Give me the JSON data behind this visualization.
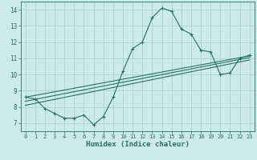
{
  "xlabel": "Humidex (Indice chaleur)",
  "bg_color": "#cceae8",
  "line_color": "#2a6e68",
  "grid_color": "#aad4d0",
  "main_x": [
    0,
    1,
    2,
    3,
    4,
    5,
    6,
    7,
    8,
    9,
    10,
    11,
    12,
    13,
    14,
    15,
    16,
    17,
    18,
    19,
    20,
    21,
    22,
    23
  ],
  "main_y": [
    8.6,
    8.5,
    7.9,
    7.6,
    7.3,
    7.3,
    7.5,
    6.9,
    7.4,
    8.6,
    10.2,
    11.6,
    12.0,
    13.5,
    14.1,
    13.9,
    12.8,
    12.5,
    11.5,
    11.4,
    10.0,
    10.1,
    11.0,
    11.2
  ],
  "line1_x": [
    0,
    23
  ],
  "line1_y": [
    8.6,
    11.15
  ],
  "line2_x": [
    0,
    23
  ],
  "line2_y": [
    8.1,
    10.9
  ],
  "line3_x": [
    0,
    23
  ],
  "line3_y": [
    8.35,
    11.05
  ],
  "xlim": [
    -0.5,
    23.5
  ],
  "ylim": [
    6.5,
    14.5
  ],
  "yticks": [
    7,
    8,
    9,
    10,
    11,
    12,
    13,
    14
  ],
  "xticks": [
    0,
    1,
    2,
    3,
    4,
    5,
    6,
    7,
    8,
    9,
    10,
    11,
    12,
    13,
    14,
    15,
    16,
    17,
    18,
    19,
    20,
    21,
    22,
    23
  ]
}
